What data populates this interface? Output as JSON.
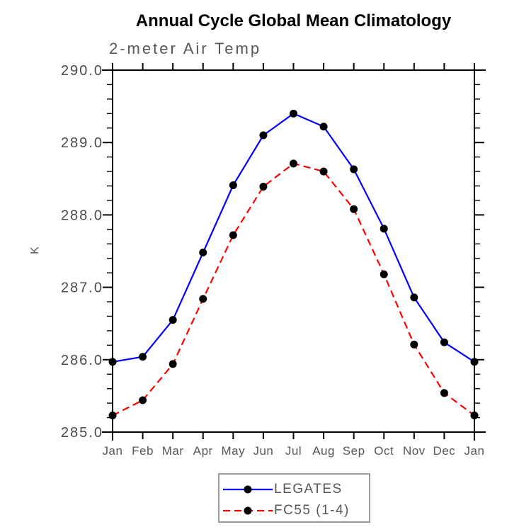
{
  "chart_data": {
    "type": "line",
    "title": "Annual Cycle Global Mean Climatology",
    "subtitle": "2-meter Air Temp",
    "ylabel": "K",
    "xlabel": "",
    "categories": [
      "Jan",
      "Feb",
      "Mar",
      "Apr",
      "May",
      "Jun",
      "Jul",
      "Aug",
      "Sep",
      "Oct",
      "Nov",
      "Dec",
      "Jan"
    ],
    "series": [
      {
        "name": "LEGATES",
        "color": "#0000ff",
        "line_style": "solid",
        "marker": "black-dot",
        "values": [
          285.97,
          286.04,
          286.55,
          287.48,
          288.41,
          289.1,
          289.4,
          289.22,
          288.63,
          287.81,
          286.86,
          286.24,
          285.97
        ]
      },
      {
        "name": "FC55 (1-4)",
        "color": "#ff0000",
        "line_style": "dashed",
        "marker": "black-dot",
        "values": [
          285.23,
          285.44,
          285.94,
          286.84,
          287.72,
          288.39,
          288.71,
          288.6,
          288.08,
          287.18,
          286.21,
          285.54,
          285.23
        ]
      }
    ],
    "ylim": [
      285.0,
      290.0
    ],
    "ytick_interval": 1.0,
    "ytick_minor_interval": 0.2,
    "ytick_labels": [
      "285.0",
      "286.0",
      "287.0",
      "288.0",
      "289.0",
      "290.0"
    ],
    "grid": false,
    "legend_position": "bottom-center",
    "colors": {
      "axis": "#000000",
      "marker": "#000000",
      "tick_label": "#4a4a4a",
      "month_label": "#575757",
      "legend_border": "#9a9a9a"
    }
  }
}
